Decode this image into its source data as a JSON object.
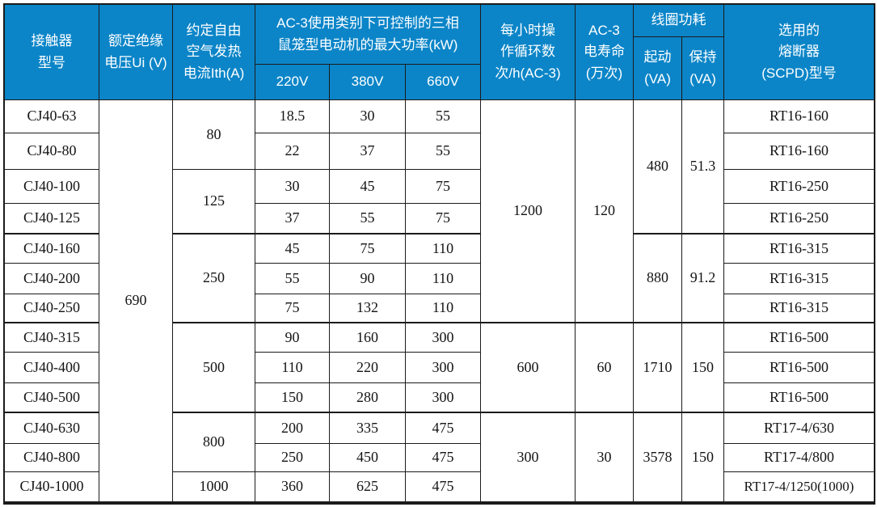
{
  "colors": {
    "header_bg": "#0b85c8",
    "header_text": "#ffffff",
    "border": "#1b1b1b",
    "body_text": "#141414"
  },
  "header": {
    "contactor": "接触器\n型号",
    "insulation": "额定绝缘\n电压Ui (V)",
    "thermal": "约定自由\n空气发热\n电流Ith(A)",
    "kw_group": "AC-3使用类别下可控制的三相\n鼠笼型电动机的最大功率(kW)",
    "v220": "220V",
    "v380": "380V",
    "v660": "660V",
    "cycles": "每小时操\n作循环数\n次/h(AC-3)",
    "life": "AC-3\n电寿命\n(万次)",
    "coil_group": "线圈功耗",
    "coil_start": "起动\n(VA)",
    "coil_hold": "保持\n(VA)",
    "fuse": "选用的\n熔断器\n(SCPD)型号"
  },
  "body": {
    "models": [
      "CJ40-63",
      "CJ40-80",
      "CJ40-100",
      "CJ40-125",
      "CJ40-160",
      "CJ40-200",
      "CJ40-250",
      "CJ40-315",
      "CJ40-400",
      "CJ40-500",
      "CJ40-630",
      "CJ40-800",
      "CJ40-1000"
    ],
    "rated_insulation_voltage": "690",
    "ith_groups": [
      "80",
      "125",
      "250",
      "500",
      "800",
      "1000"
    ],
    "kw_220": [
      "18.5",
      "22",
      "30",
      "37",
      "45",
      "55",
      "75",
      "90",
      "110",
      "150",
      "200",
      "250",
      "360"
    ],
    "kw_380": [
      "30",
      "37",
      "45",
      "55",
      "75",
      "90",
      "132",
      "160",
      "220",
      "280",
      "335",
      "450",
      "625"
    ],
    "kw_660": [
      "55",
      "55",
      "75",
      "75",
      "110",
      "110",
      "110",
      "300",
      "300",
      "300",
      "475",
      "475",
      "475"
    ],
    "cycles_per_hour": [
      "1200",
      "600",
      "300"
    ],
    "electrical_life": [
      "120",
      "60",
      "30"
    ],
    "coil_start_va": [
      "480",
      "880",
      "1710",
      "3578"
    ],
    "coil_hold_va": [
      "51.3",
      "91.2",
      "150",
      "150"
    ],
    "fuses": [
      "RT16-160",
      "RT16-160",
      "RT16-250",
      "RT16-250",
      "RT16-315",
      "RT16-315",
      "RT16-315",
      "RT16-500",
      "RT16-500",
      "RT16-500",
      "RT17-4/630",
      "RT17-4/800",
      "RT17-4/1250(1000)"
    ]
  }
}
